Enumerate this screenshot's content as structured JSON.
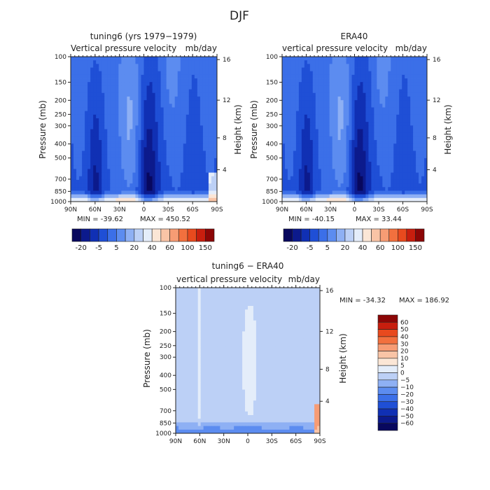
{
  "figure_title": "DJF",
  "chart_data": [
    {
      "type": "heatmap",
      "title": "tuning6 (yrs 1979−1979)",
      "subtitle_left": "Vertical pressure velocity",
      "subtitle_right": "mb/day",
      "ylabel": "Pressure (mb)",
      "ylabel_right": "Height (km)",
      "x_ticks": [
        "90N",
        "60N",
        "30N",
        "0",
        "30S",
        "60S",
        "90S"
      ],
      "y_ticks": [
        100,
        150,
        200,
        250,
        300,
        400,
        500,
        700,
        850,
        1000
      ],
      "y_ticks_right": [
        16,
        12,
        8,
        4
      ],
      "min_text": "MIN = -39.62",
      "max_text": "MAX = 450.52",
      "colorbar_labels": [
        "-20",
        "-5",
        "5",
        "20",
        "40",
        "60",
        "100",
        "150"
      ]
    },
    {
      "type": "heatmap",
      "title": "ERA40",
      "subtitle_left": "vertical pressure velocity",
      "subtitle_right": "mb/day",
      "ylabel": "Pressure (mb)",
      "ylabel_right": "Height (km)",
      "x_ticks": [
        "90N",
        "60N",
        "30N",
        "0",
        "30S",
        "60S",
        "90S"
      ],
      "y_ticks": [
        100,
        150,
        200,
        250,
        300,
        400,
        500,
        700,
        850,
        1000
      ],
      "y_ticks_right": [
        16,
        12,
        8,
        4
      ],
      "min_text": "MIN = -40.15",
      "max_text": "MAX = 33.44",
      "colorbar_labels": [
        "-20",
        "-5",
        "5",
        "20",
        "40",
        "60",
        "100",
        "150"
      ]
    },
    {
      "type": "heatmap",
      "title": "tuning6 − ERA40",
      "subtitle_left": "vertical pressure velocity",
      "subtitle_right": "mb/day",
      "ylabel": "Pressure (mb)",
      "ylabel_right": "Height (km)",
      "x_ticks": [
        "90N",
        "60N",
        "30N",
        "0",
        "30S",
        "60S",
        "90S"
      ],
      "y_ticks": [
        100,
        150,
        200,
        250,
        300,
        400,
        500,
        700,
        850,
        1000
      ],
      "y_ticks_right": [
        16,
        12,
        8,
        4
      ],
      "min_text": "MIN = -34.32",
      "max_text": "MAX = 186.92",
      "colorbar_labels": [
        "60",
        "50",
        "40",
        "30",
        "20",
        "10",
        "5",
        "0",
        "−5",
        "−10",
        "−20",
        "−30",
        "−40",
        "−50",
        "−60"
      ]
    }
  ],
  "colors": {
    "scale_top": [
      "#08085e",
      "#0c1a8c",
      "#1030b4",
      "#1f4fd6",
      "#3b6fe8",
      "#5c8cf0",
      "#8eb0f4",
      "#bcd0f6",
      "#e4edfa",
      "#fbe6d6",
      "#f9c4a6",
      "#f79c74",
      "#f2703e",
      "#e84a1e",
      "#c81e0e",
      "#8c0606"
    ],
    "scale_diff": [
      "#8c0606",
      "#c81e0e",
      "#e84a1e",
      "#f2703e",
      "#f79c74",
      "#f9c4a6",
      "#fbe6d6",
      "#e4edfa",
      "#bcd0f6",
      "#8eb0f4",
      "#5c8cf0",
      "#3b6fe8",
      "#1f4fd6",
      "#1030b4",
      "#0c1a8c",
      "#08085e"
    ]
  }
}
